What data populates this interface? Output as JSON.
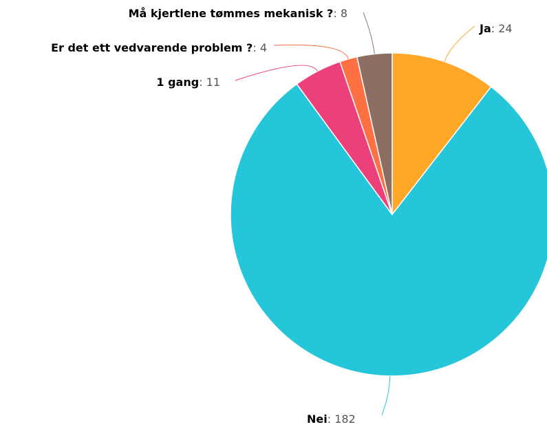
{
  "chart_data": {
    "type": "pie",
    "categories": [
      "Ja",
      "Nei",
      "1 gang",
      "Er det ett vedvarende problem ?",
      "Må kjertlene tømmes mekanisk ?"
    ],
    "values": [
      24,
      182,
      11,
      4,
      8
    ],
    "colors": [
      "#ffa726",
      "#26c6da",
      "#ec407a",
      "#ff7043",
      "#8d6e63"
    ],
    "separator": ": "
  }
}
